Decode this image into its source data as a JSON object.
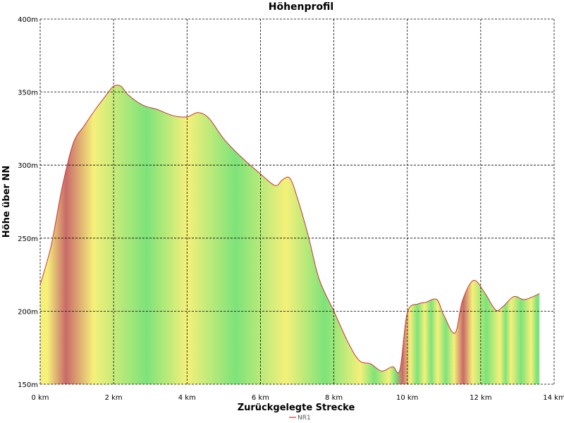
{
  "chart_data": {
    "type": "area",
    "title": "Höhenprofil",
    "xlabel": "Zurückgelegte Strecke",
    "ylabel": "Höhe über NN",
    "xlim": [
      0,
      14
    ],
    "ylim": [
      150,
      400
    ],
    "x_ticks": [
      0,
      2,
      4,
      6,
      8,
      10,
      12,
      14
    ],
    "x_tick_labels": [
      "0 km",
      "2 km",
      "4 km",
      "6 km",
      "8 km",
      "10 km",
      "12 km",
      "14 km"
    ],
    "y_ticks": [
      150,
      200,
      250,
      300,
      350,
      400
    ],
    "y_tick_labels": [
      "150m",
      "200m",
      "250m",
      "300m",
      "350m",
      "400m"
    ],
    "grid": true,
    "legend_position": "bottom-center",
    "series": [
      {
        "name": "NR1",
        "line_color": "#cc3333",
        "x": [
          0,
          0.3,
          0.6,
          0.9,
          1.2,
          1.5,
          1.8,
          2.0,
          2.2,
          2.4,
          2.8,
          3.2,
          3.6,
          4.0,
          4.3,
          4.6,
          5.0,
          5.5,
          6.0,
          6.4,
          6.6,
          6.8,
          7.0,
          7.3,
          7.6,
          8.0,
          8.4,
          8.7,
          9.0,
          9.3,
          9.6,
          9.8,
          10.0,
          10.3,
          10.5,
          10.8,
          11.0,
          11.3,
          11.5,
          11.8,
          12.1,
          12.4,
          12.6,
          12.9,
          13.2,
          13.6
        ],
        "y": [
          218,
          245,
          285,
          315,
          327,
          338,
          348,
          354,
          354,
          348,
          341,
          338,
          334,
          333,
          336,
          332,
          318,
          305,
          294,
          286,
          290,
          291,
          278,
          252,
          222,
          200,
          178,
          166,
          164,
          159,
          162,
          160,
          199,
          205,
          206,
          208,
          197,
          185,
          207,
          221,
          213,
          201,
          203,
          210,
          208,
          212
        ]
      }
    ],
    "gradient_colors": {
      "green": "#7de37a",
      "yellow": "#f5f07a",
      "red": "#c96a6a"
    },
    "gradient_bands": [
      {
        "from": 0,
        "to": 0.4,
        "color": "yellow"
      },
      {
        "from": 0.4,
        "to": 1.0,
        "color": "red"
      },
      {
        "from": 1.0,
        "to": 1.9,
        "color": "yellow"
      },
      {
        "from": 1.9,
        "to": 3.9,
        "color": "green"
      },
      {
        "from": 3.9,
        "to": 4.1,
        "color": "yellow"
      },
      {
        "from": 4.1,
        "to": 6.55,
        "color": "green"
      },
      {
        "from": 6.55,
        "to": 6.85,
        "color": "yellow"
      },
      {
        "from": 6.85,
        "to": 8.65,
        "color": "green"
      },
      {
        "from": 8.65,
        "to": 8.8,
        "color": "yellow"
      },
      {
        "from": 8.8,
        "to": 9.4,
        "color": "green"
      },
      {
        "from": 9.4,
        "to": 9.6,
        "color": "yellow"
      },
      {
        "from": 9.6,
        "to": 9.75,
        "color": "green"
      },
      {
        "from": 9.75,
        "to": 10.0,
        "color": "red"
      },
      {
        "from": 10.0,
        "to": 10.15,
        "color": "yellow"
      },
      {
        "from": 10.15,
        "to": 10.4,
        "color": "green"
      },
      {
        "from": 10.4,
        "to": 10.55,
        "color": "yellow"
      },
      {
        "from": 10.55,
        "to": 10.75,
        "color": "green"
      },
      {
        "from": 10.75,
        "to": 10.9,
        "color": "yellow"
      },
      {
        "from": 10.9,
        "to": 11.2,
        "color": "green"
      },
      {
        "from": 11.2,
        "to": 11.35,
        "color": "yellow"
      },
      {
        "from": 11.35,
        "to": 11.7,
        "color": "red"
      },
      {
        "from": 11.7,
        "to": 11.85,
        "color": "yellow"
      },
      {
        "from": 11.85,
        "to": 12.45,
        "color": "green"
      },
      {
        "from": 12.45,
        "to": 12.6,
        "color": "yellow"
      },
      {
        "from": 12.6,
        "to": 12.75,
        "color": "green"
      },
      {
        "from": 12.75,
        "to": 12.9,
        "color": "yellow"
      },
      {
        "from": 12.9,
        "to": 13.3,
        "color": "green"
      },
      {
        "from": 13.3,
        "to": 13.45,
        "color": "yellow"
      },
      {
        "from": 13.45,
        "to": 13.6,
        "color": "green"
      }
    ]
  }
}
